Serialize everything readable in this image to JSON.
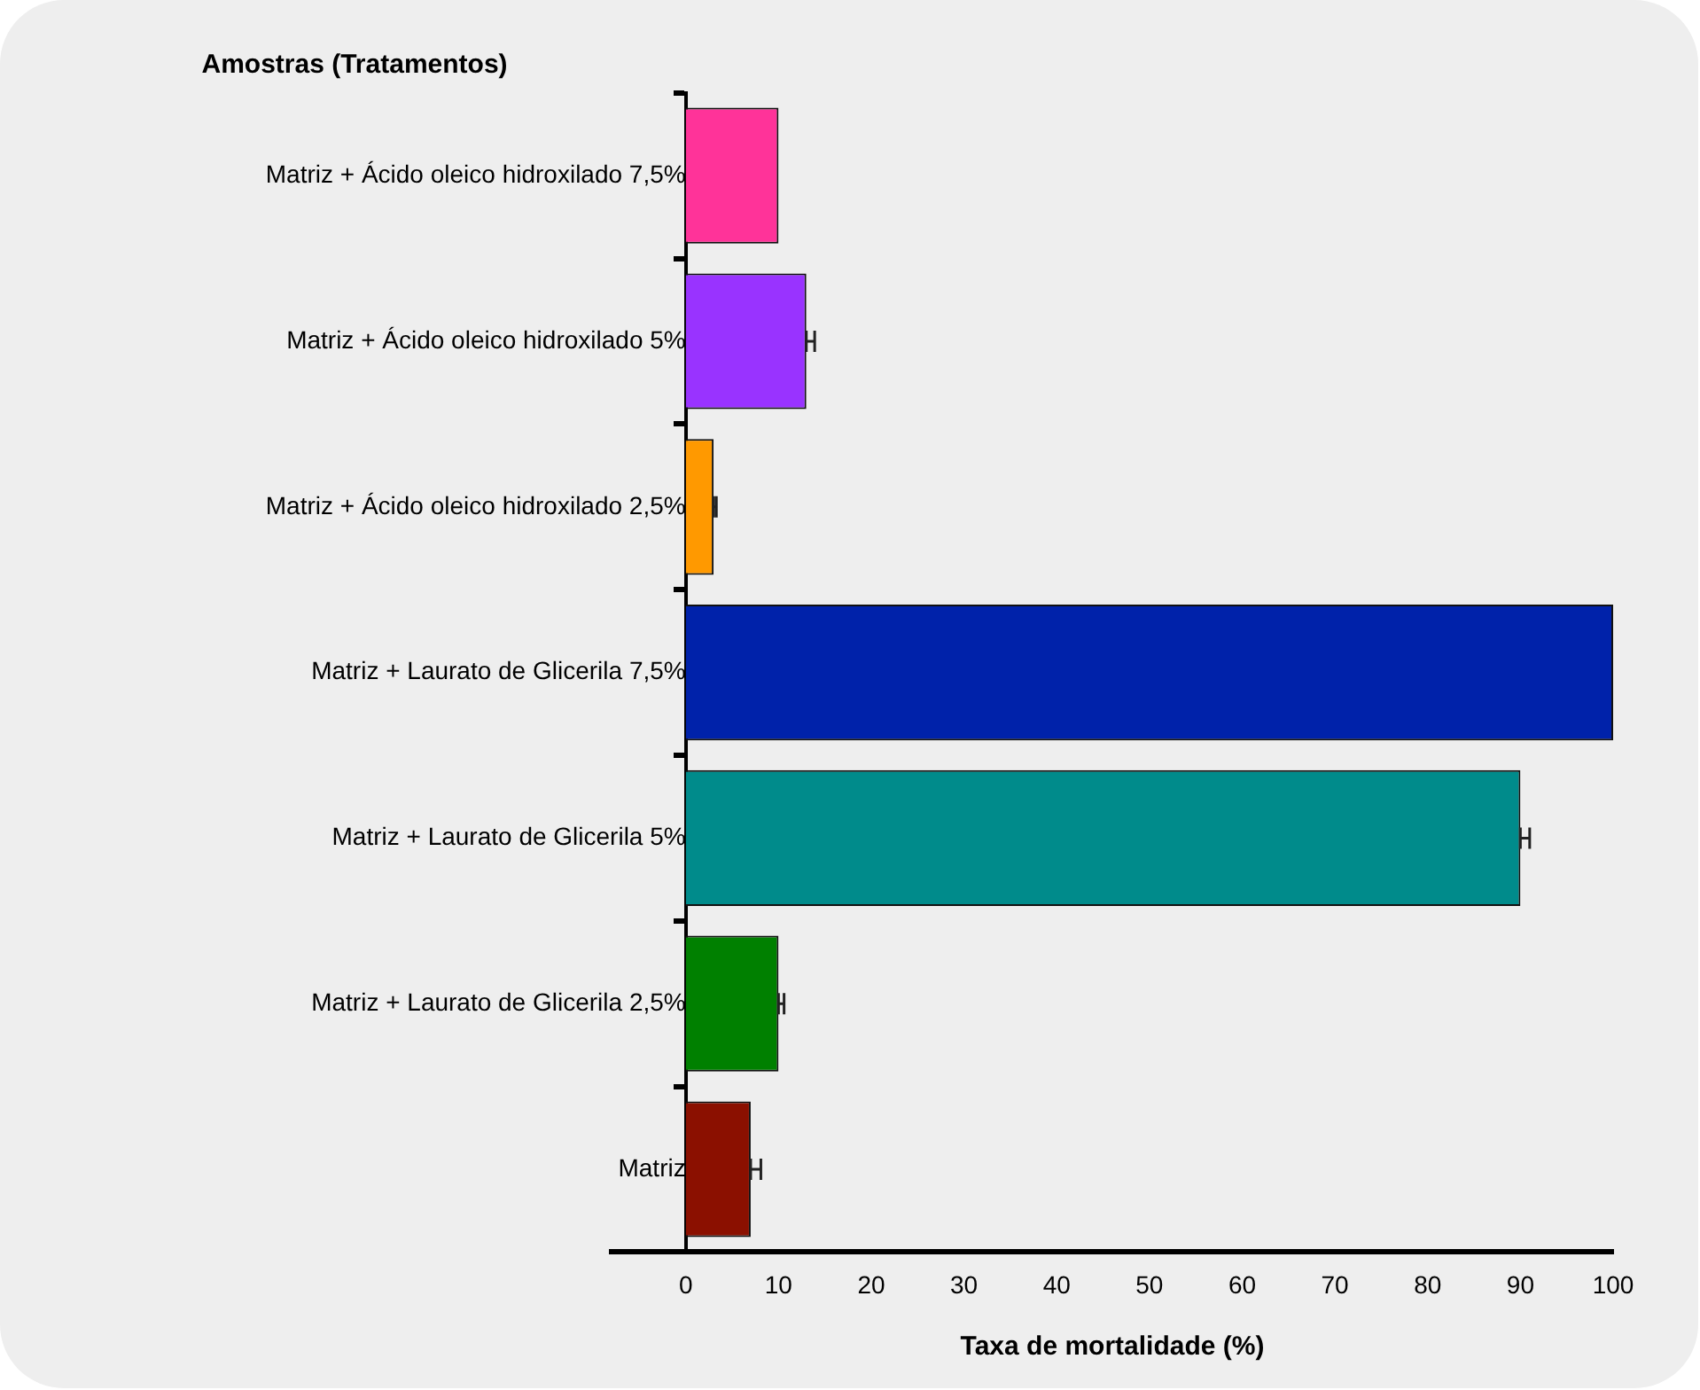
{
  "chart_data": {
    "type": "bar",
    "orientation": "horizontal",
    "xlabel": "Taxa de mortalidade (%)",
    "ylabel": "Amostras (Tratamentos)",
    "categories": [
      "Matriz + Ácido oleico hidroxilado 7,5%",
      "Matriz + Ácido oleico hidroxilado 5%",
      "Matriz + Ácido oleico hidroxilado 2,5%",
      "Matriz + Laurato de Glicerila 7,5%",
      "Matriz + Laurato de Glicerila 5%",
      "Matriz + Laurato de Glicerila 2,5%",
      "Matriz"
    ],
    "values": [
      10,
      13,
      3,
      100,
      90,
      10,
      7
    ],
    "colors": [
      "#ff3399",
      "#9933ff",
      "#ff9900",
      "#0022aa",
      "#008b8b",
      "#008000",
      "#8b1000"
    ],
    "errors": [
      null,
      [
        13,
        13.9
      ],
      [
        3,
        3.3
      ],
      null,
      [
        90,
        91
      ],
      [
        10,
        10.6
      ],
      [
        7,
        8.1
      ]
    ],
    "xlim": [
      -8,
      100
    ],
    "xticks": [
      0,
      10,
      20,
      30,
      40,
      50,
      60,
      70,
      80,
      90,
      100
    ],
    "grid": false,
    "legend": false
  }
}
